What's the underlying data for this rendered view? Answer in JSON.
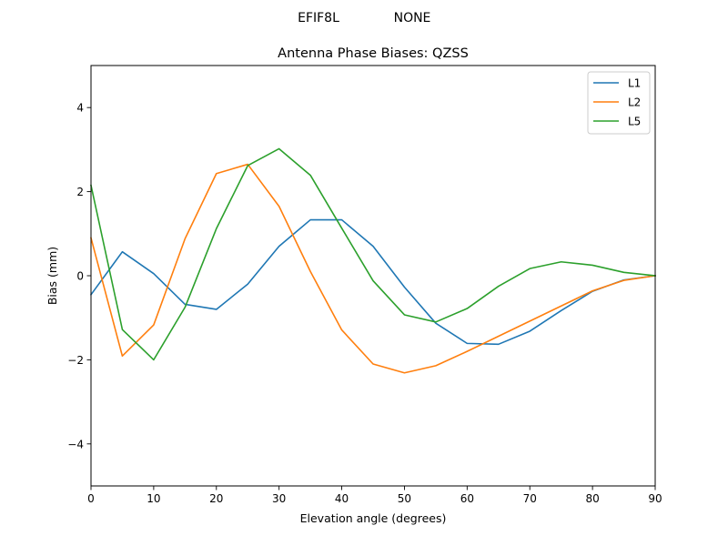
{
  "figure": {
    "suptitle_left": "EFIF8L",
    "suptitle_right": "NONE"
  },
  "chart_data": {
    "type": "line",
    "title": "Antenna Phase Biases: QZSS",
    "xlabel": "Elevation angle (degrees)",
    "ylabel": "Bias (mm)",
    "xlim": [
      0,
      90
    ],
    "ylim": [
      -5,
      5
    ],
    "xticks": [
      0,
      10,
      20,
      30,
      40,
      50,
      60,
      70,
      80,
      90
    ],
    "yticks": [
      -4,
      -2,
      0,
      2,
      4
    ],
    "grid": false,
    "legend_position": "top-right",
    "x": [
      0,
      5,
      10,
      15,
      20,
      25,
      30,
      35,
      40,
      45,
      50,
      55,
      60,
      65,
      70,
      75,
      80,
      85,
      90
    ],
    "series": [
      {
        "name": "L1",
        "color": "#1f77b4",
        "values": [
          -0.45,
          0.57,
          0.05,
          -0.68,
          -0.8,
          -0.2,
          0.7,
          1.33,
          1.33,
          0.7,
          -0.27,
          -1.13,
          -1.61,
          -1.63,
          -1.32,
          -0.83,
          -0.37,
          -0.1,
          0.0
        ]
      },
      {
        "name": "L2",
        "color": "#ff7f0e",
        "values": [
          0.9,
          -1.91,
          -1.17,
          0.88,
          2.43,
          2.65,
          1.65,
          0.1,
          -1.29,
          -2.1,
          -2.31,
          -2.14,
          -1.8,
          -1.44,
          -1.08,
          -0.72,
          -0.36,
          -0.11,
          0.0
        ]
      },
      {
        "name": "L5",
        "color": "#2ca02c",
        "values": [
          2.15,
          -1.28,
          -2.0,
          -0.75,
          1.12,
          2.62,
          3.02,
          2.39,
          1.13,
          -0.12,
          -0.93,
          -1.1,
          -0.78,
          -0.25,
          0.17,
          0.33,
          0.25,
          0.08,
          0.0
        ]
      }
    ]
  }
}
